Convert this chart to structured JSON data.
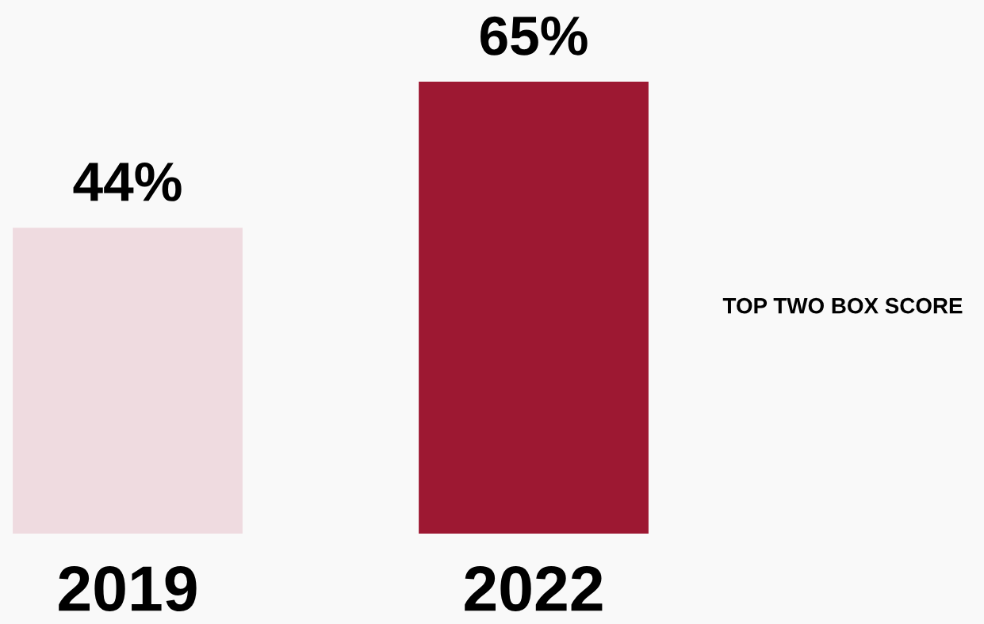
{
  "chart_data": {
    "type": "bar",
    "categories": [
      "2019",
      "2022"
    ],
    "values": [
      44,
      65
    ],
    "colors": [
      "#efdbe0",
      "#9d1832"
    ],
    "value_labels": [
      "44%",
      "65%"
    ],
    "annotations": [
      "TOP TWO BOX SCORE"
    ],
    "grid": false,
    "legend": false
  }
}
